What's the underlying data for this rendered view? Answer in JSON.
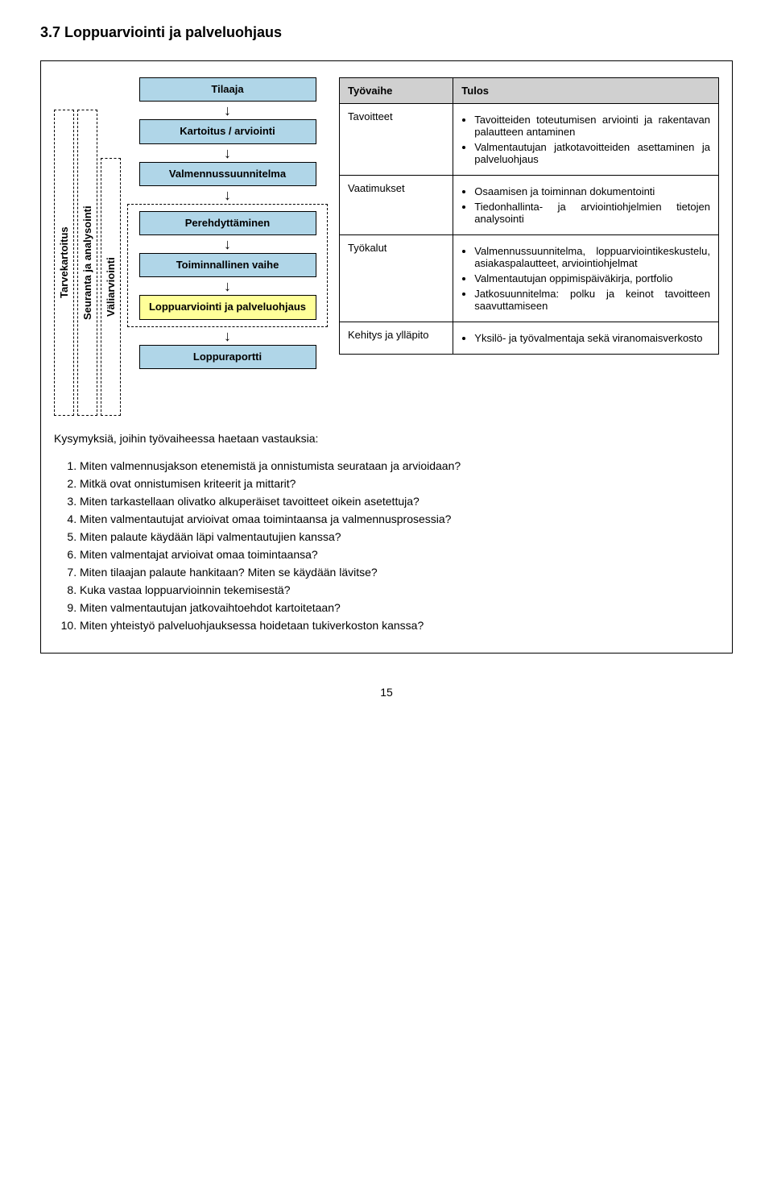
{
  "section_title": "3.7   Loppuarviointi ja palveluohjaus",
  "vertical_labels": {
    "tarvekartoitus": "Tarvekartoitus",
    "seuranta": "Seuranta ja analysointi",
    "valiarviointi": "Väliarviointi"
  },
  "flow": {
    "tilaaja": "Tilaaja",
    "kartoitus": "Kartoitus / arviointi",
    "valmennussuunnitelma": "Valmennussuunnitelma",
    "perehdyttaminen": "Perehdyttäminen",
    "toiminnallinen": "Toiminnallinen vaihe",
    "loppuarviointi": "Loppuarviointi ja palveluohjaus",
    "loppuraportti": "Loppuraportti"
  },
  "table": {
    "header": {
      "col1": "Työvaihe",
      "col2": "Tulos"
    },
    "rows": [
      {
        "label": "Tavoitteet",
        "bullets": [
          "Tavoitteiden toteutumisen arviointi ja rakentavan palautteen antaminen",
          "Valmentautujan jatkotavoitteiden asettaminen ja palveluohjaus"
        ]
      },
      {
        "label": "Vaatimukset",
        "bullets": [
          "Osaamisen ja toiminnan dokumentointi",
          "Tiedonhallinta- ja arviointiohjelmien tietojen analysointi"
        ]
      },
      {
        "label": "Työkalut",
        "bullets": [
          "Valmennussuunnitelma, loppuarviointikeskustelu, asiakaspalautteet, arviointiohjelmat",
          "Valmentautujan oppimispäiväkirja, portfolio",
          "Jatkosuunnitelma: polku ja keinot tavoitteen saavuttamiseen"
        ]
      },
      {
        "label": "Kehitys ja ylläpito",
        "bullets": [
          "Yksilö- ja työvalmentaja sekä viranomaisverkosto"
        ]
      }
    ]
  },
  "subhead": "Kysymyksiä, joihin työvaiheessa haetaan vastauksia:",
  "questions": [
    "Miten valmennusjakson etenemistä ja onnistumista seurataan ja arvioidaan?",
    "Mitkä ovat onnistumisen kriteerit ja mittarit?",
    "Miten tarkastellaan olivatko alkuperäiset tavoitteet oikein asetettuja?",
    "Miten valmentautujat arvioivat omaa toimintaansa ja valmennusprosessia?",
    "Miten palaute käydään läpi valmentautujien kanssa?",
    "Miten valmentajat arvioivat omaa toimintaansa?",
    "Miten tilaajan palaute hankitaan? Miten se käydään lävitse?",
    "Kuka vastaa loppuarvioinnin tekemisestä?",
    "Miten valmentautujan jatkovaihtoehdot kartoitetaan?",
    "Miten yhteistyö palveluohjauksessa hoidetaan tukiverkoston kanssa?"
  ],
  "page_number": "15",
  "colors": {
    "tilaaja_bg": "#b0d6e8",
    "normal_bg": "#b0d6e8",
    "highlight_bg": "#ffff99",
    "header_bg": "#d0d0d0"
  }
}
